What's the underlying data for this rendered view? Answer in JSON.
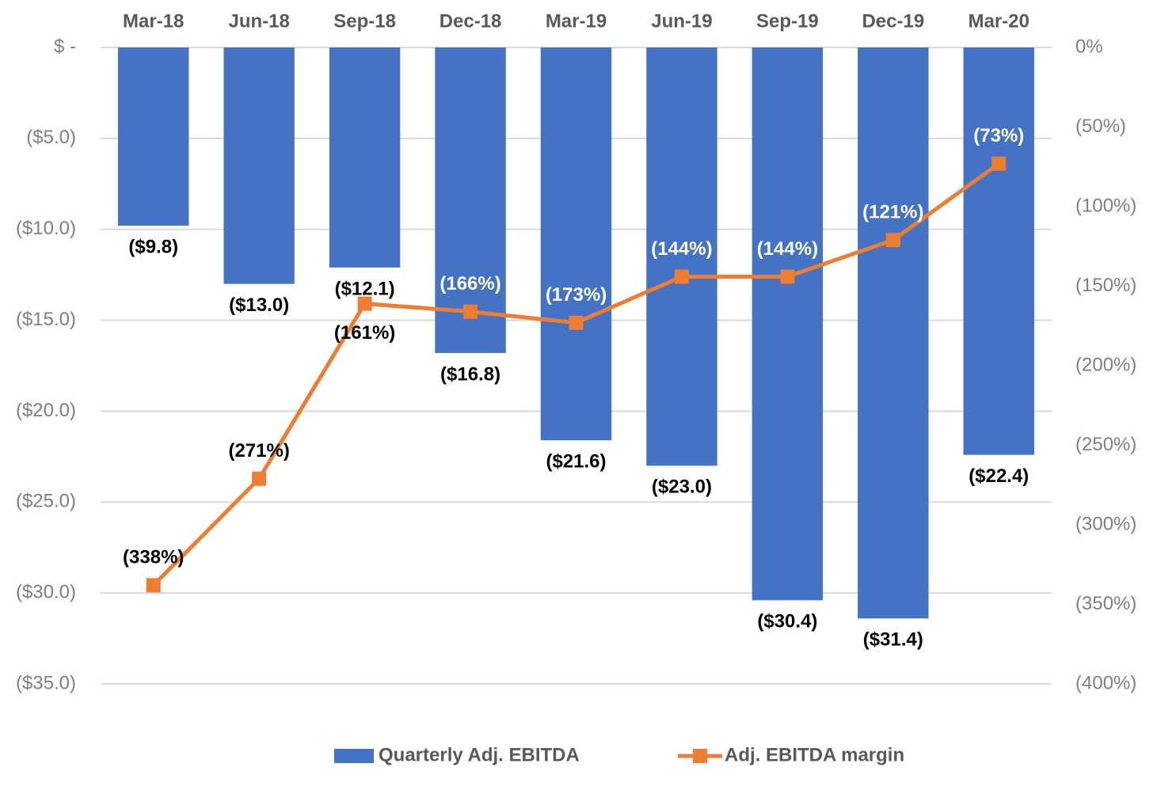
{
  "chart_data": {
    "type": "bar",
    "categories": [
      "Mar-18",
      "Jun-18",
      "Sep-18",
      "Dec-18",
      "Mar-19",
      "Jun-19",
      "Sep-19",
      "Dec-19",
      "Mar-20"
    ],
    "series": [
      {
        "name": "Quarterly Adj. EBITDA",
        "type": "bar",
        "color": "#4472c4",
        "values": [
          -9.8,
          -13.0,
          -12.1,
          -16.8,
          -21.6,
          -23.0,
          -30.4,
          -31.4,
          -22.4
        ],
        "value_labels": [
          "($9.8)",
          "($13.0)",
          "($12.1)",
          "($16.8)",
          "($21.6)",
          "($23.0)",
          "($30.4)",
          "($31.4)",
          "($22.4)"
        ]
      },
      {
        "name": "Adj. EBITDA margin",
        "type": "line",
        "axis": "y2",
        "color": "#ed7d31",
        "values": [
          -338,
          -271,
          -161,
          -166,
          -173,
          -144,
          -144,
          -121,
          -73
        ],
        "value_labels": [
          "(338%)",
          "(271%)",
          "(161%)",
          "(166%)",
          "(173%)",
          "(144%)",
          "(144%)",
          "(121%)",
          "(73%)"
        ]
      }
    ],
    "ylim": [
      0,
      -35
    ],
    "yticks": [
      {
        "value": 0,
        "label": "$ -"
      },
      {
        "value": -5,
        "label": "($5.0)"
      },
      {
        "value": -10,
        "label": "($10.0)"
      },
      {
        "value": -15,
        "label": "($15.0)"
      },
      {
        "value": -20,
        "label": "($20.0)"
      },
      {
        "value": -25,
        "label": "($25.0)"
      },
      {
        "value": -30,
        "label": "($30.0)"
      },
      {
        "value": -35,
        "label": "($35.0)"
      }
    ],
    "y2lim": [
      0,
      -400
    ],
    "y2ticks": [
      {
        "value": 0,
        "label": "0%"
      },
      {
        "value": -50,
        "label": "(50%)"
      },
      {
        "value": -100,
        "label": "(100%)"
      },
      {
        "value": -150,
        "label": "(150%)"
      },
      {
        "value": -200,
        "label": "(200%)"
      },
      {
        "value": -250,
        "label": "(250%)"
      },
      {
        "value": -300,
        "label": "(300%)"
      },
      {
        "value": -350,
        "label": "(350%)"
      },
      {
        "value": -400,
        "label": "(400%)"
      }
    ],
    "grid": true,
    "legend": "bottom"
  }
}
